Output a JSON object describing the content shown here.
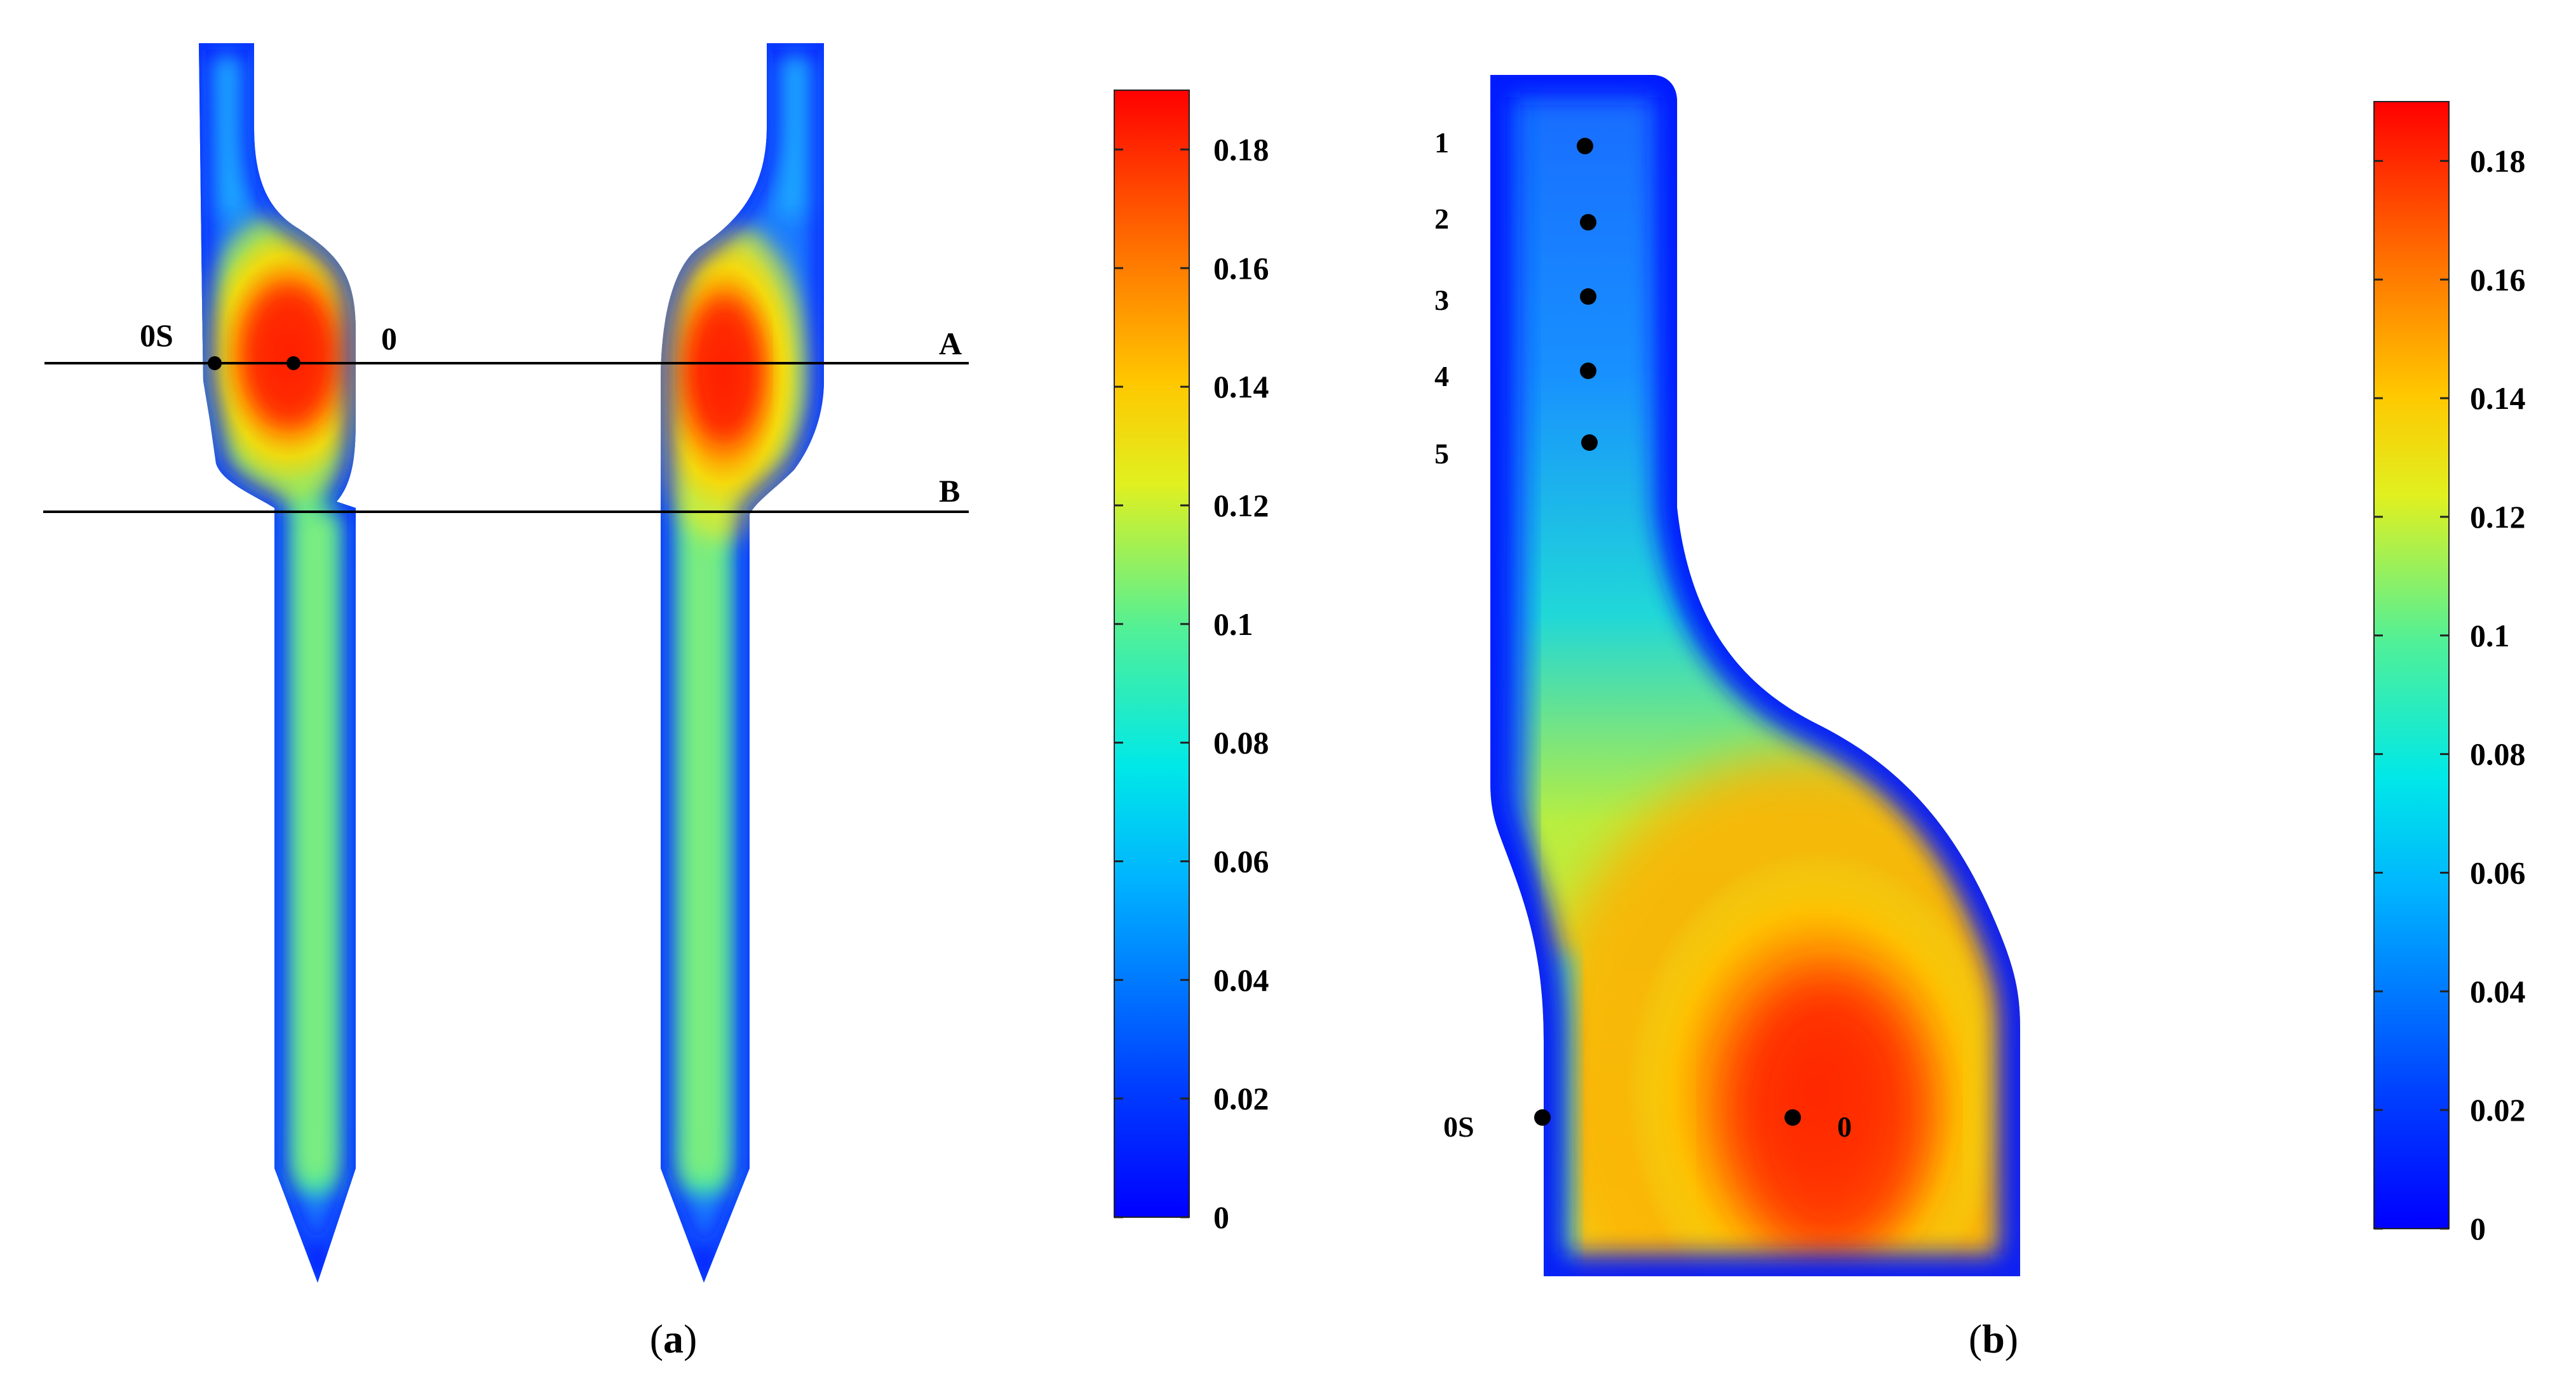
{
  "panel_a": {
    "point_labels": {
      "surface": "0S",
      "center": "0"
    },
    "line_labels": {
      "line_a": "A",
      "line_b": "B"
    },
    "caption": {
      "open": "(",
      "letter": "a",
      "close": ")"
    }
  },
  "panel_b": {
    "point_labels": [
      "1",
      "2",
      "3",
      "4",
      "5"
    ],
    "surface_label": "0S",
    "center_label": "0",
    "caption": {
      "open": "(",
      "letter": "b",
      "close": ")"
    }
  },
  "colorbar_a": {
    "ticks": [
      "0.18",
      "0.16",
      "0.14",
      "0.12",
      "0.1",
      "0.08",
      "0.06",
      "0.04",
      "0.02",
      "0"
    ],
    "range": [
      0,
      0.19
    ]
  },
  "colorbar_b": {
    "ticks": [
      "0.18",
      "0.16",
      "0.14",
      "0.12",
      "0.1",
      "0.08",
      "0.06",
      "0.04",
      "0.02",
      "0"
    ],
    "range": [
      0,
      0.19
    ]
  },
  "colors": {
    "jet": [
      "#0000ff",
      "#0050ff",
      "#00b0ff",
      "#00e5e0",
      "#60f090",
      "#d8f020",
      "#ffd000",
      "#ff8000",
      "#ff3000",
      "#e00000"
    ]
  }
}
